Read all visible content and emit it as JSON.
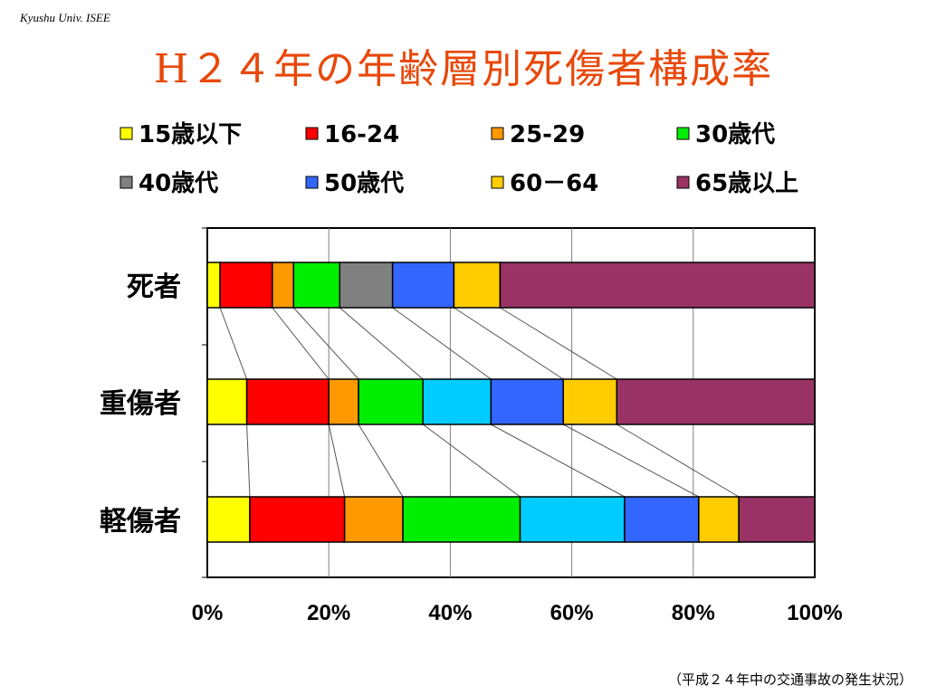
{
  "header": {
    "affiliation": "Kyushu Univ. ISEE",
    "title": "H２４年の年齢層別死傷者構成率",
    "source": "（平成２４年中の交通事故の発生状況）"
  },
  "chart_data": {
    "type": "bar",
    "orientation": "horizontal",
    "stacked": "percent",
    "categories": [
      "死者",
      "重傷者",
      "軽傷者"
    ],
    "series": [
      {
        "name": "15歳以下",
        "color": "#ffff00",
        "values": [
          2.1,
          6.5,
          7.0
        ]
      },
      {
        "name": "16-24",
        "color": "#ff0000",
        "values": [
          8.6,
          13.5,
          15.6
        ]
      },
      {
        "name": "25-29",
        "color": "#ff9900",
        "values": [
          3.5,
          4.9,
          9.6
        ]
      },
      {
        "name": "30歳代",
        "color": "#00ee00",
        "values": [
          7.6,
          10.6,
          19.3
        ]
      },
      {
        "name": "40歳代",
        "color": "#808080",
        "values": [
          8.7,
          0,
          0
        ]
      },
      {
        "name": "50歳代",
        "color": "#3366ff",
        "values": [
          10.1,
          0,
          0
        ]
      },
      {
        "name": "60－64",
        "color": "#ffcc00",
        "values": [
          7.6,
          0,
          0
        ]
      },
      {
        "name": "65歳以上",
        "color": "#993366",
        "values": [
          51.8,
          0,
          0
        ]
      },
      {
        "name": "",
        "color": "#00ccff",
        "values": [
          0,
          11.2,
          17.2
        ]
      },
      {
        "name": "",
        "color": "#3366ff",
        "values": [
          0,
          11.9,
          12.2
        ]
      },
      {
        "name": "",
        "color": "#ffcc00",
        "values": [
          0,
          8.8,
          6.6
        ]
      },
      {
        "name": "",
        "color": "#993366",
        "values": [
          0,
          32.6,
          12.5
        ]
      }
    ],
    "x_ticks": [
      "0%",
      "20%",
      "40%",
      "60%",
      "80%",
      "100%"
    ],
    "xlim": [
      0,
      100
    ],
    "legend": {
      "placement": "top",
      "entries": [
        {
          "label": "15歳以下",
          "color": "#ffff00"
        },
        {
          "label": "16-24",
          "color": "#ff0000"
        },
        {
          "label": "25-29",
          "color": "#ff9900"
        },
        {
          "label": "30歳代",
          "color": "#00ee00"
        },
        {
          "label": "40歳代",
          "color": "#808080"
        },
        {
          "label": "50歳代",
          "color": "#3366ff"
        },
        {
          "label": "60－64",
          "color": "#ffcc00"
        },
        {
          "label": "65歳以上",
          "color": "#993366"
        }
      ]
    },
    "series_lines": true,
    "grid": true
  }
}
